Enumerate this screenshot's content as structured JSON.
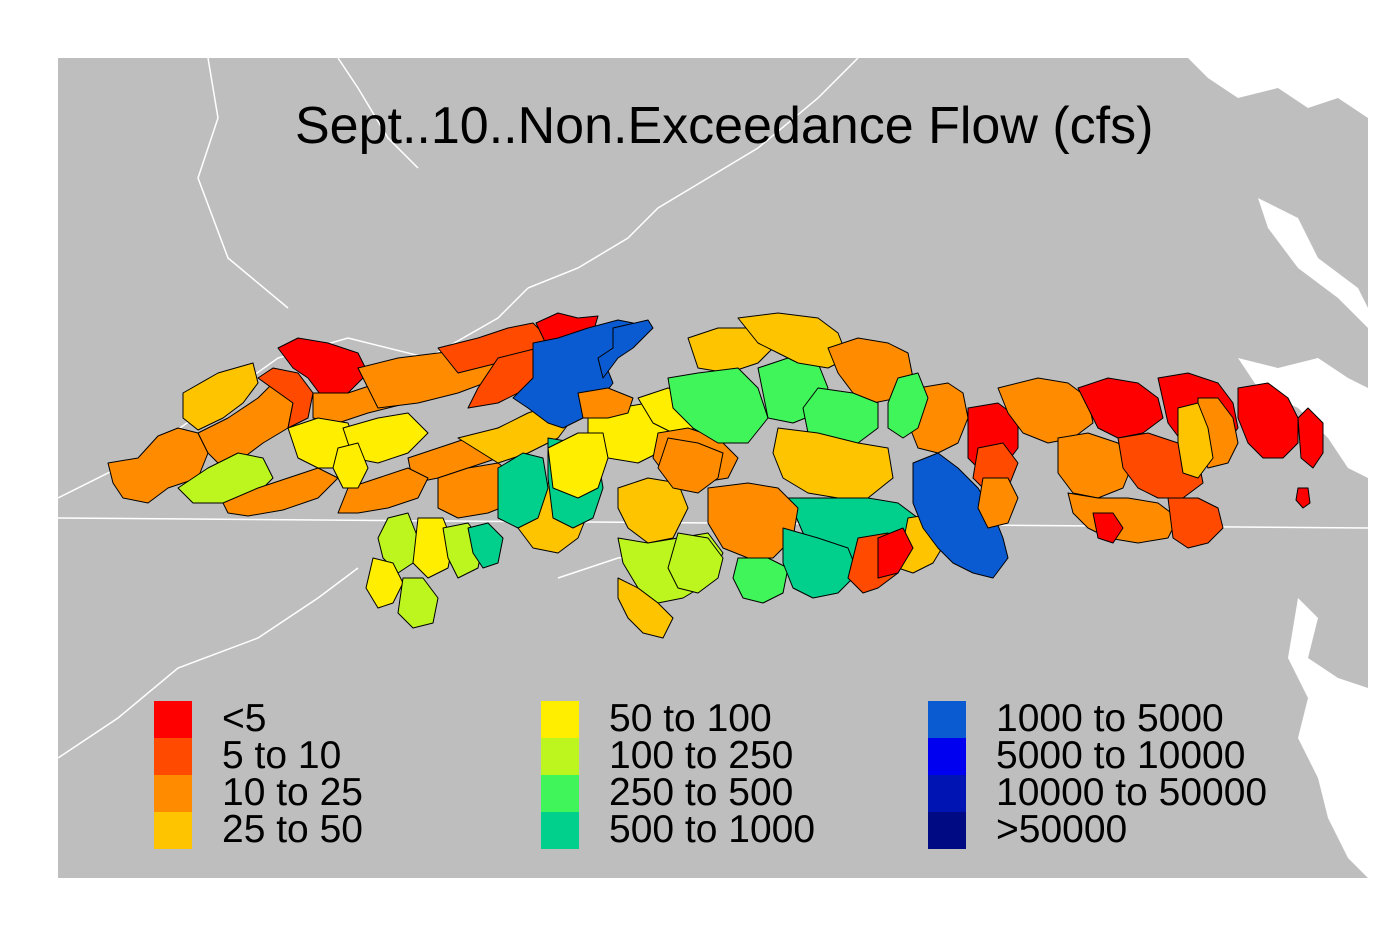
{
  "title": "Sept..10..Non.Exceedance Flow (cfs)",
  "legend": {
    "columns": [
      [
        {
          "label": "<5",
          "color": "#ff0000"
        },
        {
          "label": "5 to 10",
          "color": "#ff4a00"
        },
        {
          "label": "10 to 25",
          "color": "#ff8c00"
        },
        {
          "label": "25 to 50",
          "color": "#ffc400"
        }
      ],
      [
        {
          "label": "50 to 100",
          "color": "#ffee00"
        },
        {
          "label": "100 to 250",
          "color": "#bdf51e"
        },
        {
          "label": "250 to 500",
          "color": "#3ff55a"
        },
        {
          "label": "500 to 1000",
          "color": "#00d08c"
        }
      ],
      [
        {
          "label": "1000 to 5000",
          "color": "#0a5ad2"
        },
        {
          "label": "5000 to 10000",
          "color": "#0000f0"
        },
        {
          "label": "10000 to 50000",
          "color": "#0014b4"
        },
        {
          "label": ">50000",
          "color": "#000a82"
        }
      ]
    ]
  },
  "colors": {
    "background": "#bebebe",
    "boundary": "#ffffff",
    "watershed_outline": "#000000"
  }
}
